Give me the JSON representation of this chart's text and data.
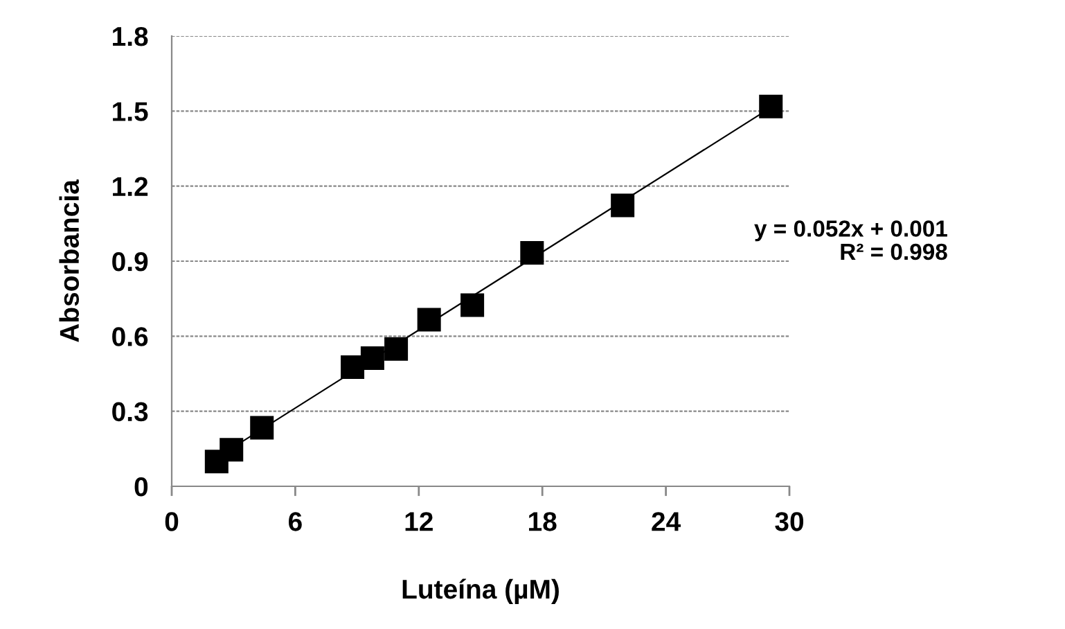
{
  "chart_data": {
    "type": "scatter",
    "xlabel": "Luteína (µM)",
    "ylabel": "Absorbancia",
    "x": [
      2.18,
      2.9,
      4.38,
      8.78,
      9.75,
      10.9,
      12.5,
      14.6,
      17.5,
      21.9,
      29.1
    ],
    "series": [
      {
        "color": "#000000",
        "marker": "square",
        "values": [
          0.099,
          0.146,
          0.234,
          0.476,
          0.512,
          0.549,
          0.666,
          0.724,
          0.933,
          1.123,
          1.518
        ]
      },
      {
        "type": "line",
        "color": "#000000",
        "marker": "none",
        "line_style": "solid",
        "x": [
          2.18,
          29.1
        ],
        "values": [
          0.114,
          1.514
        ]
      }
    ],
    "annotations": [
      "y = 0.052x + 0.001\nR² = 0.998"
    ],
    "xlim": [
      0,
      30
    ],
    "xticks": [
      0,
      6,
      12,
      18,
      24,
      30
    ],
    "ylim": [
      0,
      1.8
    ],
    "yticks": [
      0,
      0.3,
      0.6,
      0.9,
      1.2,
      1.5,
      1.8
    ],
    "grid": "y",
    "legend": false
  }
}
